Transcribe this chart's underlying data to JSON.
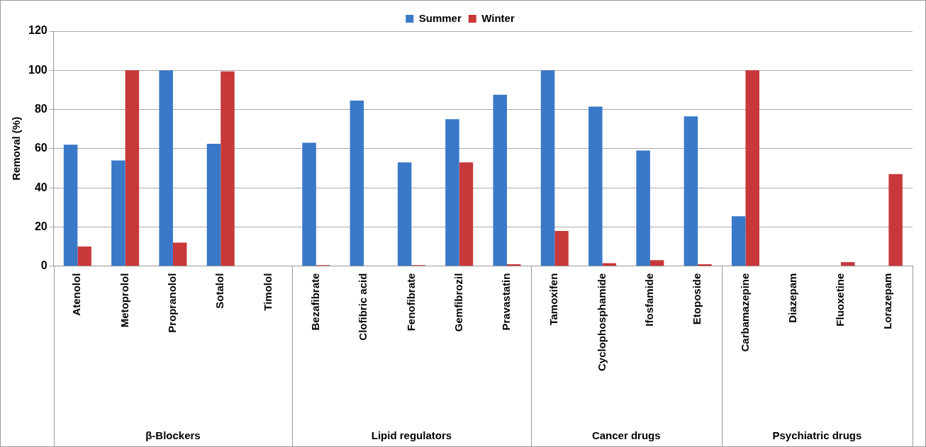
{
  "chart_data": {
    "type": "bar",
    "ylabel": "Removal (%)",
    "categories": [
      "Atenolol",
      "Metoprolol",
      "Propranolol",
      "Sotalol",
      "Timolol",
      "Bezafibrate",
      "Clofibric acid",
      "Fenofibrate",
      "Gemfibrozil",
      "Pravastatin",
      "Tamoxifen",
      "Cyclophosphamide",
      "Ifosfamide",
      "Etoposide",
      "Carbamazepine",
      "Diazepam",
      "Fluoxetine",
      "Lorazepam"
    ],
    "series": [
      {
        "name": "Summer",
        "color": "#3a78c8",
        "values": [
          62,
          54,
          100,
          62.5,
          0,
          63,
          84.5,
          53,
          75,
          87.5,
          100,
          81.5,
          59,
          76.5,
          25.5,
          0,
          0,
          0
        ]
      },
      {
        "name": "Winter",
        "color": "#c8383a",
        "values": [
          10,
          100,
          12,
          99.5,
          0,
          0.5,
          0,
          0.5,
          53,
          1,
          18,
          1.5,
          3,
          1,
          100,
          0,
          2,
          47
        ]
      }
    ],
    "annotations": [
      "β-Blockers",
      "Lipid regulators",
      "Cancer drugs",
      "Psychiatric drugs"
    ],
    "ylim": [
      0,
      120
    ],
    "yticks": [
      0,
      20,
      40,
      60,
      80,
      100,
      120
    ],
    "grid": "y",
    "legend": "top"
  }
}
